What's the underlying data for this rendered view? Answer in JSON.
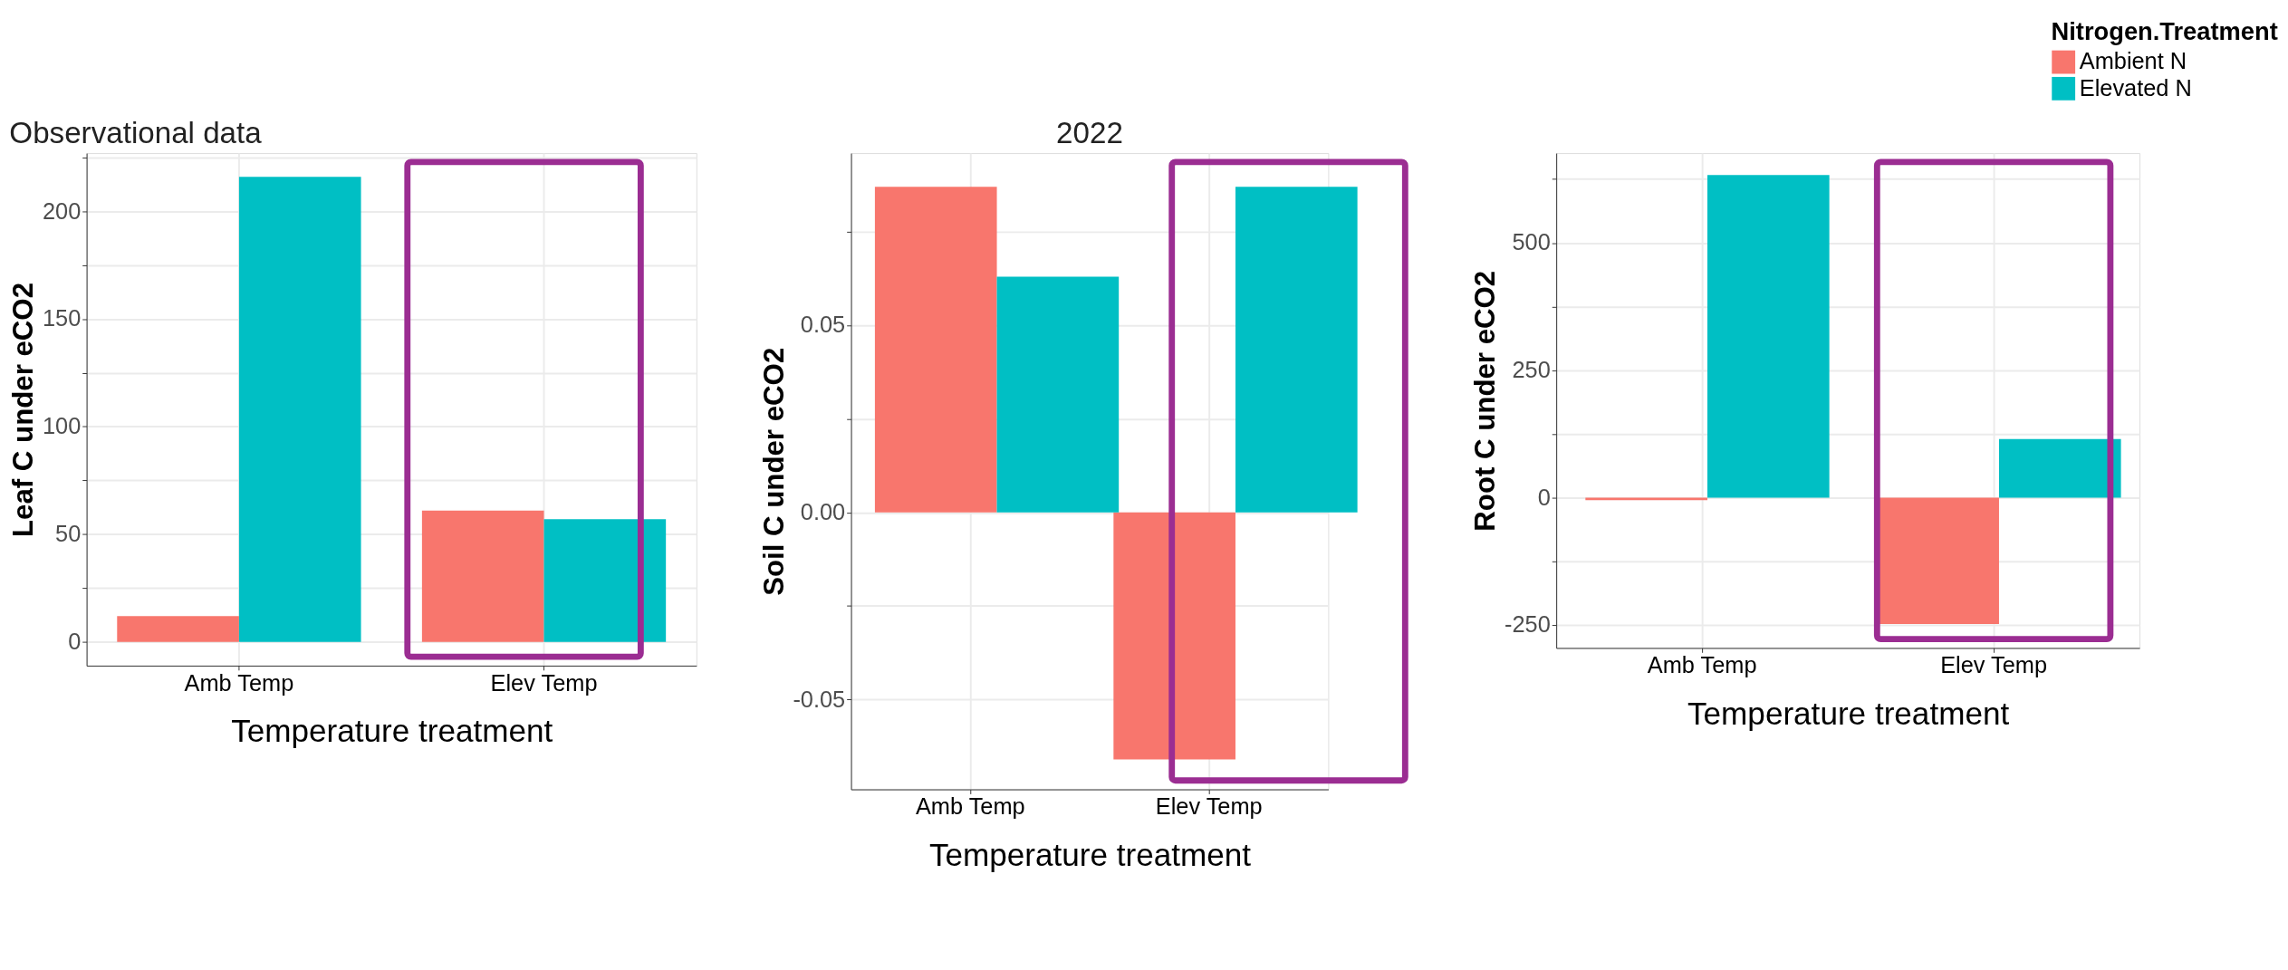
{
  "chart_data": [
    {
      "type": "bar",
      "title": "Observational data",
      "xlabel": "Temperature treatment",
      "ylabel": "Leaf C under eCO2",
      "categories": [
        "Amb Temp",
        "Elev Temp"
      ],
      "series": [
        {
          "color": "#f8766d",
          "values": [
            12,
            61
          ]
        },
        {
          "color": "#00bfc4",
          "values": [
            216,
            57
          ]
        }
      ],
      "ylim": [
        -11,
        227
      ],
      "yticks": [
        0,
        {
          "value": 25,
          "label": null
        },
        50,
        {
          "value": 75,
          "label": null
        },
        100,
        {
          "value": 125,
          "label": null
        },
        150,
        {
          "value": 175,
          "label": null
        },
        200,
        {
          "value": 225,
          "label": null
        }
      ],
      "grid": true,
      "legend": false
    },
    {
      "type": "bar",
      "title": "2022",
      "xlabel": "Temperature treatment",
      "ylabel": "Soil C under eCO2",
      "categories": [
        "Amb Temp",
        "Elev Temp"
      ],
      "series": [
        {
          "color": "#f8766d",
          "values": [
            0.087,
            -0.066
          ]
        },
        {
          "color": "#00bfc4",
          "values": [
            0.063,
            0.087
          ]
        }
      ],
      "ylim": [
        -0.074,
        0.096
      ],
      "yticks": [
        {
          "value": -0.05,
          "label": "-0.05"
        },
        {
          "value": -0.025,
          "label": null
        },
        {
          "value": 0,
          "label": "0.00"
        },
        {
          "value": 0.025,
          "label": null
        },
        {
          "value": 0.05,
          "label": "0.05"
        },
        {
          "value": 0.075,
          "label": null
        }
      ],
      "grid": true,
      "legend": false
    },
    {
      "type": "bar",
      "xlabel": "Temperature treatment",
      "ylabel": "Root C under eCO2",
      "legend_title": "Nitrogen.Treatment",
      "categories": [
        "Amb Temp",
        "Elev Temp"
      ],
      "series": [
        {
          "name": "Ambient N",
          "color": "#f8766d",
          "values": [
            -5,
            -248
          ]
        },
        {
          "name": "Elevated N",
          "color": "#00bfc4",
          "values": [
            633,
            115
          ]
        }
      ],
      "ylim": [
        -295,
        676
      ],
      "yticks": [
        -250,
        {
          "value": -125,
          "label": null
        },
        0,
        {
          "value": 125,
          "label": null
        },
        250,
        {
          "value": 375,
          "label": null
        },
        500,
        {
          "value": 625,
          "label": null
        }
      ],
      "grid": true,
      "legend": "top right"
    }
  ]
}
